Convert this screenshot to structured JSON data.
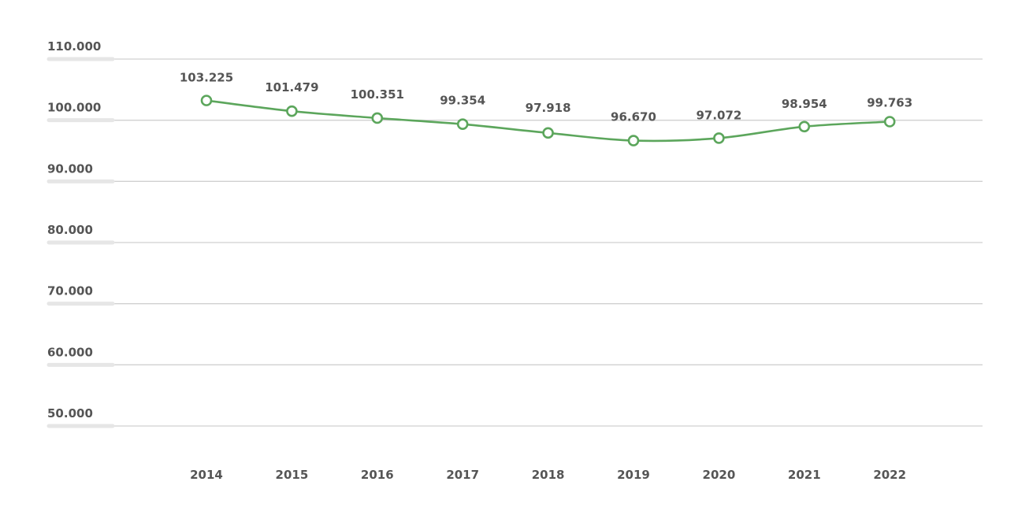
{
  "chart_data": {
    "type": "line",
    "title": "",
    "xlabel": "",
    "ylabel": "",
    "categories": [
      "2014",
      "2015",
      "2016",
      "2017",
      "2018",
      "2019",
      "2020",
      "2021",
      "2022"
    ],
    "series": [
      {
        "values": [
          103225,
          101479,
          100351,
          99354,
          97918,
          96670,
          97072,
          98954,
          99763
        ],
        "labels": [
          "103.225",
          "101.479",
          "100.351",
          "99.354",
          "97.918",
          "96.670",
          "97.072",
          "98.954",
          "99.763"
        ],
        "color": "#5ca65c"
      }
    ],
    "yticks": [
      50000,
      60000,
      70000,
      80000,
      90000,
      100000,
      110000
    ],
    "ytick_labels": [
      "50.000",
      "60.000",
      "70.000",
      "80.000",
      "90.000",
      "100.000",
      "110.000"
    ],
    "ylim": [
      50000,
      110000
    ],
    "grid": true,
    "legend": "none",
    "marker": "open-circle",
    "smooth": true
  }
}
